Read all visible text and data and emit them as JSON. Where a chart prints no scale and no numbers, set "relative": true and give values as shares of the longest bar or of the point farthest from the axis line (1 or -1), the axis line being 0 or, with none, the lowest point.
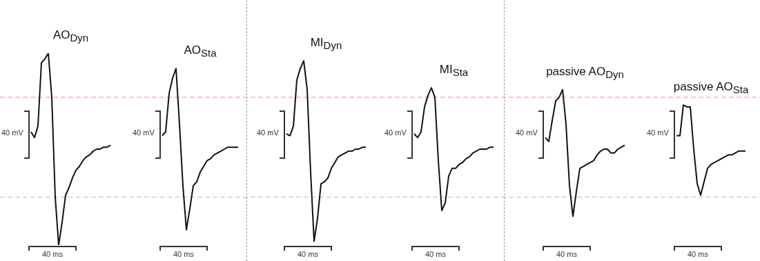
{
  "chart_data": {
    "type": "line",
    "relative": true,
    "marker": "none",
    "categories": [
      null,
      null,
      null,
      null,
      null,
      null,
      null,
      null,
      null,
      null,
      null,
      null,
      null,
      null,
      null,
      null,
      null,
      null,
      null,
      null,
      null,
      null,
      null,
      null,
      null,
      null,
      null,
      null,
      null,
      null,
      null,
      null,
      null,
      null,
      null,
      null,
      null,
      null,
      null,
      null,
      null,
      null,
      null,
      null,
      null,
      null,
      null,
      null,
      null,
      null,
      null,
      null,
      null,
      null,
      null,
      null,
      null,
      null,
      null,
      null,
      null,
      null,
      null,
      null,
      null,
      null,
      null,
      null,
      null,
      null,
      null,
      null,
      null,
      null,
      null,
      null,
      null,
      null,
      null,
      null,
      null,
      null,
      null,
      null,
      null,
      null,
      null,
      null,
      null,
      null,
      null,
      null,
      null,
      null,
      null,
      null,
      null,
      null,
      null,
      null,
      null,
      null,
      null,
      null,
      null,
      null,
      null,
      null,
      null,
      null,
      null,
      null,
      null,
      null,
      null,
      null,
      null,
      null,
      null,
      null,
      null,
      null,
      null,
      null,
      null,
      null,
      null,
      null,
      null,
      null,
      null,
      null,
      null,
      null,
      null,
      null,
      null,
      null,
      null,
      null,
      null,
      null,
      null,
      null,
      null,
      null,
      null,
      null,
      null,
      null,
      null,
      null,
      null,
      null,
      null,
      null,
      null,
      null,
      null,
      null,
      null,
      null,
      null,
      null,
      null,
      null,
      null,
      null,
      null,
      null,
      null,
      null,
      null,
      null,
      null,
      null,
      null,
      null,
      null,
      null,
      null,
      null,
      null,
      null,
      null,
      null,
      null,
      null,
      null,
      null,
      null,
      null,
      null,
      null,
      null,
      null,
      null,
      null,
      null,
      null,
      null,
      null,
      null,
      null,
      null,
      null,
      null,
      null,
      null,
      null
    ],
    "series": [
      {
        "name": "AO$_{Dyn}$",
        "color": "#111111",
        "values": [
          null,
          0.59,
          0.56,
          0.62,
          0.95,
          0.97,
          1.0,
          0.77,
          0.25,
          0,
          0.12,
          0.26,
          0.3,
          0.35,
          0.39,
          0.41,
          0.44,
          0.46,
          0.47,
          0.49,
          0.5,
          0.5,
          0.51,
          0.51,
          0.52,
          null,
          null,
          null,
          null,
          null,
          null,
          null,
          null,
          null,
          null,
          null,
          null,
          null,
          null,
          null,
          null,
          null,
          null,
          null,
          null,
          null,
          null,
          null,
          null,
          null,
          null,
          null,
          null,
          null,
          null,
          null,
          null,
          null,
          null,
          null,
          null,
          null,
          null,
          null,
          null,
          null,
          null,
          null,
          null,
          null,
          null,
          null,
          null,
          null,
          null,
          null,
          null,
          null,
          null,
          null,
          null,
          null,
          null,
          null,
          null,
          null,
          null,
          null,
          null,
          null,
          null,
          null,
          null,
          null,
          null,
          null,
          null,
          null,
          null,
          null,
          null,
          null,
          null,
          null,
          null,
          null,
          null,
          null,
          null,
          null,
          null,
          null,
          null,
          null,
          null,
          null,
          null,
          null,
          null,
          null,
          null,
          null,
          null,
          null,
          null,
          null,
          null,
          null,
          null,
          null,
          null,
          null,
          null,
          null,
          null,
          null,
          null,
          null,
          null,
          null,
          null,
          null,
          null,
          null,
          null,
          null,
          null,
          null,
          null,
          null,
          null,
          null,
          null,
          null,
          null,
          null,
          null,
          null,
          null,
          null,
          null,
          null,
          null,
          null,
          null,
          null,
          null,
          null,
          null,
          null,
          null,
          null,
          null,
          null,
          null,
          null,
          null,
          null,
          null,
          null,
          null,
          null,
          null,
          null,
          null,
          null,
          null,
          null,
          null,
          null,
          null,
          null,
          null,
          null,
          null,
          null,
          null,
          null,
          null,
          null,
          null,
          null,
          null,
          null,
          null,
          null,
          null,
          null,
          null,
          null
        ]
      },
      {
        "name": "AO$_{Sta}$",
        "color": "#111111",
        "values": [
          null,
          null,
          null,
          null,
          null,
          null,
          null,
          null,
          null,
          null,
          null,
          null,
          null,
          null,
          null,
          null,
          null,
          null,
          null,
          null,
          null,
          null,
          null,
          null,
          null,
          null,
          null,
          null,
          null,
          null,
          null,
          null,
          null,
          null,
          null,
          null,
          null,
          null,
          null,
          0.57,
          0.59,
          0.79,
          0.87,
          0.92,
          0.63,
          0.31,
          0.08,
          0.19,
          0.31,
          0.33,
          0.38,
          0.41,
          0.44,
          0.45,
          0.47,
          0.48,
          0.49,
          0.5,
          0.51,
          0.51,
          0.51,
          0.51,
          null,
          null,
          null,
          null,
          null,
          null,
          null,
          null,
          null,
          null,
          null,
          null,
          null,
          null,
          null,
          null,
          null,
          null,
          null,
          null,
          null,
          null,
          null,
          null,
          null,
          null,
          null,
          null,
          null,
          null,
          null,
          null,
          null,
          null,
          null,
          null,
          null,
          null,
          null,
          null,
          null,
          null,
          null,
          null,
          null,
          null,
          null,
          null,
          null,
          null,
          null,
          null,
          null,
          null,
          null,
          null,
          null,
          null,
          null,
          null,
          null,
          null,
          null,
          null,
          null,
          null,
          null,
          null,
          null,
          null,
          null,
          null,
          null,
          null,
          null,
          null,
          null,
          null,
          null,
          null,
          null,
          null,
          null,
          null,
          null,
          null,
          null,
          null,
          null,
          null,
          null,
          null,
          null,
          null,
          null,
          null,
          null,
          null,
          null,
          null,
          null,
          null,
          null,
          null,
          null,
          null,
          null,
          null,
          null,
          null,
          null,
          null,
          null,
          null,
          null,
          null,
          null,
          null,
          null,
          null,
          null,
          null,
          null,
          null,
          null,
          null,
          null,
          null,
          null,
          null,
          null,
          null,
          null,
          null,
          null,
          null,
          null,
          null,
          null,
          null,
          null,
          null,
          null,
          null,
          null,
          null,
          null,
          null
        ]
      },
      {
        "name": "MI$_{Dyn}$",
        "color": "#111111",
        "values": [
          null,
          null,
          null,
          null,
          null,
          null,
          null,
          null,
          null,
          null,
          null,
          null,
          null,
          null,
          null,
          null,
          null,
          null,
          null,
          null,
          null,
          null,
          null,
          null,
          null,
          null,
          null,
          null,
          null,
          null,
          null,
          null,
          null,
          null,
          null,
          null,
          null,
          null,
          null,
          null,
          null,
          null,
          null,
          null,
          null,
          null,
          null,
          null,
          null,
          null,
          null,
          null,
          null,
          null,
          null,
          null,
          null,
          null,
          null,
          null,
          null,
          null,
          null,
          null,
          null,
          null,
          null,
          null,
          null,
          null,
          null,
          null,
          null,
          null,
          null,
          0.58,
          0.57,
          0.62,
          0.86,
          0.92,
          0.96,
          0.81,
          0.38,
          0.02,
          0.14,
          0.32,
          0.33,
          0.35,
          0.4,
          0.43,
          0.46,
          0.47,
          0.48,
          0.49,
          0.49,
          0.5,
          0.5,
          0.51,
          0.51,
          null,
          null,
          null,
          null,
          null,
          null,
          null,
          null,
          null,
          null,
          null,
          null,
          null,
          null,
          null,
          null,
          null,
          null,
          null,
          null,
          null,
          null,
          null,
          null,
          null,
          null,
          null,
          null,
          null,
          null,
          null,
          null,
          null,
          null,
          null,
          null,
          null,
          null,
          null,
          null,
          null,
          null,
          null,
          null,
          null,
          null,
          null,
          null,
          null,
          null,
          null,
          null,
          null,
          null,
          null,
          null,
          null,
          null,
          null,
          null,
          null,
          null,
          null,
          null,
          null,
          null,
          null,
          null,
          null,
          null,
          null,
          null,
          null,
          null,
          null,
          null,
          null,
          null,
          null,
          null,
          null,
          null,
          null,
          null,
          null,
          null,
          null,
          null,
          null,
          null,
          null,
          null,
          null,
          null,
          null,
          null,
          null,
          null,
          null,
          null,
          null,
          null,
          null,
          null,
          null,
          null,
          null,
          null,
          null,
          null,
          null
        ]
      },
      {
        "name": "MI$_{Sta}$",
        "color": "#111111",
        "values": [
          null,
          null,
          null,
          null,
          null,
          null,
          null,
          null,
          null,
          null,
          null,
          null,
          null,
          null,
          null,
          null,
          null,
          null,
          null,
          null,
          null,
          null,
          null,
          null,
          null,
          null,
          null,
          null,
          null,
          null,
          null,
          null,
          null,
          null,
          null,
          null,
          null,
          null,
          null,
          null,
          null,
          null,
          null,
          null,
          null,
          null,
          null,
          null,
          null,
          null,
          null,
          null,
          null,
          null,
          null,
          null,
          null,
          null,
          null,
          null,
          null,
          null,
          null,
          null,
          null,
          null,
          null,
          null,
          null,
          null,
          null,
          null,
          null,
          null,
          null,
          null,
          null,
          null,
          null,
          null,
          null,
          null,
          null,
          null,
          null,
          null,
          null,
          null,
          null,
          null,
          null,
          null,
          null,
          null,
          null,
          null,
          null,
          null,
          null,
          null,
          null,
          null,
          null,
          null,
          null,
          null,
          null,
          null,
          null,
          null,
          null,
          null,
          0.58,
          0.56,
          0.59,
          0.72,
          0.78,
          0.82,
          0.77,
          0.44,
          0.18,
          0.22,
          0.36,
          0.4,
          0.4,
          0.42,
          0.43,
          0.45,
          0.46,
          0.48,
          0.49,
          0.5,
          0.5,
          0.5,
          0.51,
          0.51,
          null,
          null,
          null,
          null,
          null,
          null,
          null,
          null,
          null,
          null,
          null,
          null,
          null,
          null,
          null,
          null,
          null,
          null,
          null,
          null,
          null,
          null,
          null,
          null,
          null,
          null,
          null,
          null,
          null,
          null,
          null,
          null,
          null,
          null,
          null,
          null,
          null,
          null,
          null,
          null,
          null,
          null,
          null,
          null,
          null,
          null,
          null,
          null,
          null,
          null,
          null,
          null,
          null,
          null,
          null,
          null,
          null,
          null,
          null,
          null,
          null,
          null,
          null,
          null,
          null,
          null,
          null,
          null,
          null,
          null,
          null,
          null,
          null,
          null
        ]
      },
      {
        "name": "passive AO$_{Dyn}$",
        "color": "#111111",
        "values": [
          null,
          null,
          null,
          null,
          null,
          null,
          null,
          null,
          null,
          null,
          null,
          null,
          null,
          null,
          null,
          null,
          null,
          null,
          null,
          null,
          null,
          null,
          null,
          null,
          null,
          null,
          null,
          null,
          null,
          null,
          null,
          null,
          null,
          null,
          null,
          null,
          null,
          null,
          null,
          null,
          null,
          null,
          null,
          null,
          null,
          null,
          null,
          null,
          null,
          null,
          null,
          null,
          null,
          null,
          null,
          null,
          null,
          null,
          null,
          null,
          null,
          null,
          null,
          null,
          null,
          null,
          null,
          null,
          null,
          null,
          null,
          null,
          null,
          null,
          null,
          null,
          null,
          null,
          null,
          null,
          null,
          null,
          null,
          null,
          null,
          null,
          null,
          null,
          null,
          null,
          null,
          null,
          null,
          null,
          null,
          null,
          null,
          null,
          null,
          null,
          null,
          null,
          null,
          null,
          null,
          null,
          null,
          null,
          null,
          null,
          null,
          null,
          null,
          null,
          null,
          null,
          null,
          null,
          null,
          null,
          null,
          null,
          null,
          null,
          null,
          null,
          null,
          null,
          null,
          null,
          null,
          null,
          null,
          null,
          null,
          null,
          null,
          null,
          null,
          null,
          null,
          null,
          null,
          null,
          null,
          null,
          null,
          null,
          null,
          null,
          0.56,
          0.54,
          0.65,
          0.75,
          0.77,
          0.81,
          0.63,
          0.31,
          0.15,
          0.28,
          0.4,
          0.41,
          0.42,
          0.43,
          0.44,
          0.47,
          0.49,
          0.5,
          0.5,
          0.48,
          0.48,
          0.5,
          0.51,
          0.52,
          null,
          null,
          null,
          null,
          null,
          null,
          null,
          null,
          null,
          null,
          null,
          null,
          null,
          null,
          null,
          null,
          null,
          null,
          null,
          null,
          null,
          null,
          null,
          null,
          null,
          null,
          null,
          null,
          null,
          null,
          null,
          null,
          null,
          null,
          null,
          null
        ]
      },
      {
        "name": "passive AO$_{Sta}$",
        "color": "#111111",
        "values": [
          null,
          null,
          null,
          null,
          null,
          null,
          null,
          null,
          null,
          null,
          null,
          null,
          null,
          null,
          null,
          null,
          null,
          null,
          null,
          null,
          null,
          null,
          null,
          null,
          null,
          null,
          null,
          null,
          null,
          null,
          null,
          null,
          null,
          null,
          null,
          null,
          null,
          null,
          null,
          null,
          null,
          null,
          null,
          null,
          null,
          null,
          null,
          null,
          null,
          null,
          null,
          null,
          null,
          null,
          null,
          null,
          null,
          null,
          null,
          null,
          null,
          null,
          null,
          null,
          null,
          null,
          null,
          null,
          null,
          null,
          null,
          null,
          null,
          null,
          null,
          null,
          null,
          null,
          null,
          null,
          null,
          null,
          null,
          null,
          null,
          null,
          null,
          null,
          null,
          null,
          null,
          null,
          null,
          null,
          null,
          null,
          null,
          null,
          null,
          null,
          null,
          null,
          null,
          null,
          null,
          null,
          null,
          null,
          null,
          null,
          null,
          null,
          null,
          null,
          null,
          null,
          null,
          null,
          null,
          null,
          null,
          null,
          null,
          null,
          null,
          null,
          null,
          null,
          null,
          null,
          null,
          null,
          null,
          null,
          null,
          null,
          null,
          null,
          null,
          null,
          null,
          null,
          null,
          null,
          null,
          null,
          null,
          null,
          null,
          null,
          null,
          null,
          null,
          null,
          null,
          null,
          null,
          null,
          null,
          null,
          null,
          null,
          null,
          null,
          null,
          null,
          null,
          null,
          null,
          null,
          null,
          null,
          null,
          null,
          null,
          null,
          null,
          null,
          null,
          null,
          null,
          null,
          null,
          null,
          null,
          null,
          null,
          null,
          0.57,
          0.57,
          0.73,
          0.72,
          0.72,
          0.5,
          0.32,
          0.26,
          0.33,
          0.4,
          0.42,
          0.43,
          0.44,
          0.45,
          0.46,
          0.47,
          0.47,
          0.48,
          0.49,
          0.49,
          0.49,
          null
        ]
      }
    ],
    "ref_lines": [
      {
        "axis": "y",
        "value": 0.77,
        "color": "#f4a3a3",
        "line_style": "dashed"
      },
      {
        "axis": "y",
        "value": 0.25,
        "color": "#f4a3a3",
        "line_style": "dashed"
      }
    ],
    "annotations": [
      "40 mV",
      "40 ms",
      "40 mV",
      "40 ms",
      "40 mV",
      "40 ms",
      "40 mV",
      "40 ms",
      "40 mV",
      "40 ms",
      "40 mV",
      "40 ms"
    ]
  }
}
